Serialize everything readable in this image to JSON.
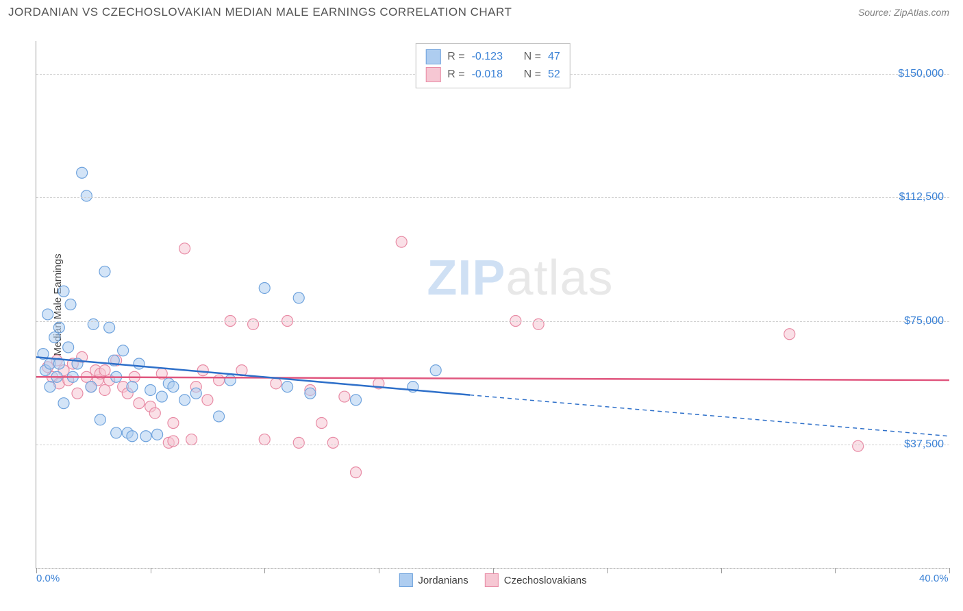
{
  "header": {
    "title": "JORDANIAN VS CZECHOSLOVAKIAN MEDIAN MALE EARNINGS CORRELATION CHART",
    "source": "Source: ZipAtlas.com"
  },
  "watermark": {
    "zip": "ZIP",
    "atlas": "atlas"
  },
  "chart": {
    "type": "scatter",
    "y_label": "Median Male Earnings",
    "background_color": "#ffffff",
    "grid_color": "#d0d0d0",
    "axis_color": "#9a9a9a",
    "tick_label_color": "#3b82d6",
    "x_range": [
      0,
      40
    ],
    "y_range": [
      0,
      160000
    ],
    "x_ticks": [
      0,
      5,
      10,
      15,
      20,
      25,
      30,
      35,
      40
    ],
    "x_tick_labels": {
      "0": "0.0%",
      "40": "40.0%"
    },
    "y_gridlines": [
      0,
      37500,
      75000,
      112500,
      150000
    ],
    "y_tick_labels": {
      "37500": "$37,500",
      "75000": "$75,000",
      "112500": "$112,500",
      "150000": "$150,000"
    },
    "marker_radius": 8,
    "marker_opacity": 0.55,
    "line_width": 2.5,
    "series": [
      {
        "name": "Jordanians",
        "fill_color": "#aecdf0",
        "stroke_color": "#6fa3dd",
        "line_color": "#2d6fc9",
        "R": "-0.123",
        "N": "47",
        "trend": {
          "x1": 0,
          "y1": 64000,
          "x_solid_end": 19,
          "y_solid_end": 52500,
          "x2": 40,
          "y2": 40000
        },
        "points": [
          [
            0.3,
            65000
          ],
          [
            0.4,
            60000
          ],
          [
            0.5,
            77000
          ],
          [
            0.6,
            55000
          ],
          [
            0.6,
            62000
          ],
          [
            0.8,
            70000
          ],
          [
            0.9,
            58000
          ],
          [
            1.0,
            62000
          ],
          [
            1.0,
            73000
          ],
          [
            1.2,
            84000
          ],
          [
            1.2,
            50000
          ],
          [
            1.4,
            67000
          ],
          [
            1.5,
            80000
          ],
          [
            1.6,
            58000
          ],
          [
            1.8,
            62000
          ],
          [
            2.0,
            120000
          ],
          [
            2.2,
            113000
          ],
          [
            2.4,
            55000
          ],
          [
            2.5,
            74000
          ],
          [
            2.8,
            45000
          ],
          [
            3.0,
            90000
          ],
          [
            3.2,
            73000
          ],
          [
            3.4,
            63000
          ],
          [
            3.5,
            41000
          ],
          [
            3.5,
            58000
          ],
          [
            3.8,
            66000
          ],
          [
            4.0,
            41000
          ],
          [
            4.2,
            55000
          ],
          [
            4.2,
            40000
          ],
          [
            4.5,
            62000
          ],
          [
            4.8,
            40000
          ],
          [
            5.0,
            54000
          ],
          [
            5.3,
            40500
          ],
          [
            5.5,
            52000
          ],
          [
            5.8,
            56000
          ],
          [
            6.0,
            55000
          ],
          [
            6.5,
            51000
          ],
          [
            7.0,
            53000
          ],
          [
            8.0,
            46000
          ],
          [
            8.5,
            57000
          ],
          [
            10.0,
            85000
          ],
          [
            11.0,
            55000
          ],
          [
            11.5,
            82000
          ],
          [
            12.0,
            53000
          ],
          [
            14.0,
            51000
          ],
          [
            16.5,
            55000
          ],
          [
            17.5,
            60000
          ]
        ]
      },
      {
        "name": "Czechoslovakians",
        "fill_color": "#f6c7d3",
        "stroke_color": "#e88ba5",
        "line_color": "#e0567e",
        "R": "-0.018",
        "N": "52",
        "trend": {
          "x1": 0,
          "y1": 58000,
          "x_solid_end": 40,
          "y_solid_end": 57000,
          "x2": 40,
          "y2": 57000
        },
        "points": [
          [
            0.5,
            61000
          ],
          [
            0.7,
            58000
          ],
          [
            0.9,
            63000
          ],
          [
            1.0,
            56000
          ],
          [
            1.2,
            60000
          ],
          [
            1.4,
            57000
          ],
          [
            1.6,
            62000
          ],
          [
            1.8,
            53000
          ],
          [
            2.0,
            64000
          ],
          [
            2.2,
            58000
          ],
          [
            2.4,
            55000
          ],
          [
            2.6,
            60000
          ],
          [
            2.7,
            57000
          ],
          [
            2.8,
            59000
          ],
          [
            3.0,
            54000
          ],
          [
            3.0,
            60000
          ],
          [
            3.2,
            57000
          ],
          [
            3.5,
            63000
          ],
          [
            3.8,
            55000
          ],
          [
            4.0,
            53000
          ],
          [
            4.3,
            58000
          ],
          [
            4.5,
            50000
          ],
          [
            5.0,
            49000
          ],
          [
            5.2,
            47000
          ],
          [
            5.5,
            59000
          ],
          [
            5.8,
            38000
          ],
          [
            6.0,
            44000
          ],
          [
            6.0,
            38500
          ],
          [
            6.5,
            97000
          ],
          [
            6.8,
            39000
          ],
          [
            7.0,
            55000
          ],
          [
            7.3,
            60000
          ],
          [
            7.5,
            51000
          ],
          [
            8.0,
            57000
          ],
          [
            8.5,
            75000
          ],
          [
            9.0,
            60000
          ],
          [
            9.5,
            74000
          ],
          [
            10.0,
            39000
          ],
          [
            10.5,
            56000
          ],
          [
            11.0,
            75000
          ],
          [
            11.5,
            38000
          ],
          [
            12.0,
            54000
          ],
          [
            12.5,
            44000
          ],
          [
            13.0,
            38000
          ],
          [
            13.5,
            52000
          ],
          [
            14.0,
            29000
          ],
          [
            15.0,
            56000
          ],
          [
            16.0,
            99000
          ],
          [
            21.0,
            75000
          ],
          [
            22.0,
            74000
          ],
          [
            33.0,
            71000
          ],
          [
            36.0,
            37000
          ]
        ]
      }
    ],
    "bottom_legend": [
      {
        "label": "Jordanians",
        "fill": "#aecdf0",
        "stroke": "#6fa3dd"
      },
      {
        "label": "Czechoslovakians",
        "fill": "#f6c7d3",
        "stroke": "#e88ba5"
      }
    ]
  }
}
